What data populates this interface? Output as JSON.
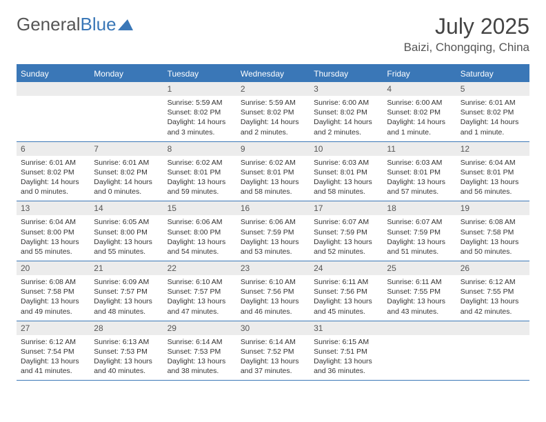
{
  "brand": {
    "part1": "General",
    "part2": "Blue",
    "logo_color": "#3a77b7",
    "text_color": "#555555"
  },
  "title": "July 2025",
  "location": "Baizi, Chongqing, China",
  "colors": {
    "header_bg": "#3a77b7",
    "header_text": "#ffffff",
    "daynum_bg": "#ececec",
    "border": "#3a77b7",
    "body_text": "#333333"
  },
  "day_names": [
    "Sunday",
    "Monday",
    "Tuesday",
    "Wednesday",
    "Thursday",
    "Friday",
    "Saturday"
  ],
  "weeks": [
    [
      {
        "n": "",
        "sr": "",
        "ss": "",
        "dl": ""
      },
      {
        "n": "",
        "sr": "",
        "ss": "",
        "dl": ""
      },
      {
        "n": "1",
        "sr": "5:59 AM",
        "ss": "8:02 PM",
        "dl": "14 hours and 3 minutes."
      },
      {
        "n": "2",
        "sr": "5:59 AM",
        "ss": "8:02 PM",
        "dl": "14 hours and 2 minutes."
      },
      {
        "n": "3",
        "sr": "6:00 AM",
        "ss": "8:02 PM",
        "dl": "14 hours and 2 minutes."
      },
      {
        "n": "4",
        "sr": "6:00 AM",
        "ss": "8:02 PM",
        "dl": "14 hours and 1 minute."
      },
      {
        "n": "5",
        "sr": "6:01 AM",
        "ss": "8:02 PM",
        "dl": "14 hours and 1 minute."
      }
    ],
    [
      {
        "n": "6",
        "sr": "6:01 AM",
        "ss": "8:02 PM",
        "dl": "14 hours and 0 minutes."
      },
      {
        "n": "7",
        "sr": "6:01 AM",
        "ss": "8:02 PM",
        "dl": "14 hours and 0 minutes."
      },
      {
        "n": "8",
        "sr": "6:02 AM",
        "ss": "8:01 PM",
        "dl": "13 hours and 59 minutes."
      },
      {
        "n": "9",
        "sr": "6:02 AM",
        "ss": "8:01 PM",
        "dl": "13 hours and 58 minutes."
      },
      {
        "n": "10",
        "sr": "6:03 AM",
        "ss": "8:01 PM",
        "dl": "13 hours and 58 minutes."
      },
      {
        "n": "11",
        "sr": "6:03 AM",
        "ss": "8:01 PM",
        "dl": "13 hours and 57 minutes."
      },
      {
        "n": "12",
        "sr": "6:04 AM",
        "ss": "8:01 PM",
        "dl": "13 hours and 56 minutes."
      }
    ],
    [
      {
        "n": "13",
        "sr": "6:04 AM",
        "ss": "8:00 PM",
        "dl": "13 hours and 55 minutes."
      },
      {
        "n": "14",
        "sr": "6:05 AM",
        "ss": "8:00 PM",
        "dl": "13 hours and 55 minutes."
      },
      {
        "n": "15",
        "sr": "6:06 AM",
        "ss": "8:00 PM",
        "dl": "13 hours and 54 minutes."
      },
      {
        "n": "16",
        "sr": "6:06 AM",
        "ss": "7:59 PM",
        "dl": "13 hours and 53 minutes."
      },
      {
        "n": "17",
        "sr": "6:07 AM",
        "ss": "7:59 PM",
        "dl": "13 hours and 52 minutes."
      },
      {
        "n": "18",
        "sr": "6:07 AM",
        "ss": "7:59 PM",
        "dl": "13 hours and 51 minutes."
      },
      {
        "n": "19",
        "sr": "6:08 AM",
        "ss": "7:58 PM",
        "dl": "13 hours and 50 minutes."
      }
    ],
    [
      {
        "n": "20",
        "sr": "6:08 AM",
        "ss": "7:58 PM",
        "dl": "13 hours and 49 minutes."
      },
      {
        "n": "21",
        "sr": "6:09 AM",
        "ss": "7:57 PM",
        "dl": "13 hours and 48 minutes."
      },
      {
        "n": "22",
        "sr": "6:10 AM",
        "ss": "7:57 PM",
        "dl": "13 hours and 47 minutes."
      },
      {
        "n": "23",
        "sr": "6:10 AM",
        "ss": "7:56 PM",
        "dl": "13 hours and 46 minutes."
      },
      {
        "n": "24",
        "sr": "6:11 AM",
        "ss": "7:56 PM",
        "dl": "13 hours and 45 minutes."
      },
      {
        "n": "25",
        "sr": "6:11 AM",
        "ss": "7:55 PM",
        "dl": "13 hours and 43 minutes."
      },
      {
        "n": "26",
        "sr": "6:12 AM",
        "ss": "7:55 PM",
        "dl": "13 hours and 42 minutes."
      }
    ],
    [
      {
        "n": "27",
        "sr": "6:12 AM",
        "ss": "7:54 PM",
        "dl": "13 hours and 41 minutes."
      },
      {
        "n": "28",
        "sr": "6:13 AM",
        "ss": "7:53 PM",
        "dl": "13 hours and 40 minutes."
      },
      {
        "n": "29",
        "sr": "6:14 AM",
        "ss": "7:53 PM",
        "dl": "13 hours and 38 minutes."
      },
      {
        "n": "30",
        "sr": "6:14 AM",
        "ss": "7:52 PM",
        "dl": "13 hours and 37 minutes."
      },
      {
        "n": "31",
        "sr": "6:15 AM",
        "ss": "7:51 PM",
        "dl": "13 hours and 36 minutes."
      },
      {
        "n": "",
        "sr": "",
        "ss": "",
        "dl": ""
      },
      {
        "n": "",
        "sr": "",
        "ss": "",
        "dl": ""
      }
    ]
  ],
  "labels": {
    "sunrise": "Sunrise: ",
    "sunset": "Sunset: ",
    "daylight": "Daylight: "
  }
}
